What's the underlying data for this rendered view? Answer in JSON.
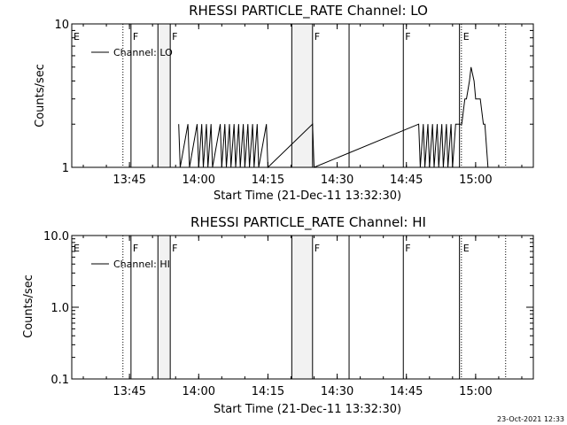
{
  "footer": {
    "timestamp": "23-Oct-2021 12:33"
  },
  "chart_data": [
    {
      "type": "line",
      "title": "RHESSI PARTICLE_RATE Channel: LO",
      "xlabel": "Start Time (21-Dec-11 13:32:30)",
      "ylabel": "Counts/sec",
      "yscale": "log",
      "ylim": [
        1,
        10
      ],
      "ytick_values": [
        1,
        10
      ],
      "ytick_labels": [
        "1",
        "10"
      ],
      "xlim": [
        "13:32:30",
        "15:12:30"
      ],
      "xticks": [
        "13:45",
        "14:00",
        "14:15",
        "14:30",
        "14:45",
        "15:00"
      ],
      "legend": {
        "entries": [
          "Channel: LO"
        ],
        "placement": "top-left"
      },
      "markers": [
        {
          "time": "13:32:30",
          "label": "E",
          "style": "solid"
        },
        {
          "time": "13:43:35",
          "label": "",
          "style": "dotted"
        },
        {
          "time": "13:45:20",
          "label": "F",
          "style": "solid"
        },
        {
          "time": "13:51:10",
          "label": "",
          "style": "solid"
        },
        {
          "time": "13:53:50",
          "label": "F",
          "style": "solid"
        },
        {
          "time": "14:20:10",
          "label": "",
          "style": "solid"
        },
        {
          "time": "14:24:40",
          "label": "F",
          "style": "solid"
        },
        {
          "time": "14:32:35",
          "label": "",
          "style": "solid"
        },
        {
          "time": "14:44:20",
          "label": "F",
          "style": "solid"
        },
        {
          "time": "14:56:30",
          "label": "",
          "style": "solid"
        },
        {
          "time": "14:56:55",
          "label": "E",
          "style": "dotted"
        },
        {
          "time": "15:06:30",
          "label": "",
          "style": "dotted"
        }
      ],
      "shaded": [
        [
          "13:51:10",
          "13:53:50"
        ],
        [
          "14:20:10",
          "14:24:40"
        ]
      ],
      "series": [
        {
          "name": "Channel: LO",
          "x": [
            "13:55:40",
            "13:56:00",
            "13:57:40",
            "13:58:00",
            "13:59:40",
            "14:00:00",
            "14:00:40",
            "14:01:00",
            "14:01:40",
            "14:02:00",
            "14:02:40",
            "14:03:00",
            "14:04:40",
            "14:05:00",
            "14:05:40",
            "14:06:00",
            "14:06:40",
            "14:07:00",
            "14:07:40",
            "14:08:00",
            "14:08:40",
            "14:09:00",
            "14:09:40",
            "14:10:00",
            "14:10:40",
            "14:11:00",
            "14:11:40",
            "14:12:00",
            "14:12:40",
            "14:13:00",
            "14:14:40",
            "14:15:00",
            "14:24:40",
            "14:25:00",
            "14:47:40",
            "14:48:00",
            "14:48:40",
            "14:49:00",
            "14:49:40",
            "14:50:00",
            "14:50:40",
            "14:51:00",
            "14:51:40",
            "14:52:00",
            "14:52:40",
            "14:53:00",
            "14:53:40",
            "14:54:00",
            "14:54:40",
            "14:55:00",
            "14:55:40",
            "14:56:00",
            "14:56:40",
            "14:57:00",
            "14:57:40",
            "14:58:00",
            "14:58:40",
            "14:59:00",
            "14:59:40",
            "15:00:00",
            "15:00:40",
            "15:01:00",
            "15:01:40",
            "15:02:00",
            "15:02:40",
            "15:03:00",
            "15:03:40",
            "15:04:00"
          ],
          "y": [
            2,
            1,
            2,
            1,
            2,
            1,
            2,
            1,
            2,
            1,
            2,
            1,
            2,
            1,
            2,
            1,
            2,
            1,
            2,
            1,
            2,
            1,
            2,
            1,
            2,
            1,
            2,
            1,
            2,
            1,
            2,
            1,
            2,
            1,
            2,
            1,
            2,
            1,
            2,
            1,
            2,
            1,
            2,
            1,
            2,
            1,
            2,
            1,
            2,
            1,
            2,
            2,
            2,
            2,
            3,
            3,
            4,
            5,
            4,
            3,
            3,
            3,
            2,
            2,
            1,
            1,
            1,
            1
          ]
        }
      ]
    },
    {
      "type": "line",
      "title": "RHESSI PARTICLE_RATE Channel: HI",
      "xlabel": "Start Time (21-Dec-11 13:32:30)",
      "ylabel": "Counts/sec",
      "yscale": "log",
      "ylim": [
        0.1,
        10
      ],
      "ytick_values": [
        0.1,
        1,
        10
      ],
      "ytick_labels": [
        "0.1",
        "1.0",
        "10.0"
      ],
      "xlim": [
        "13:32:30",
        "15:12:30"
      ],
      "xticks": [
        "13:45",
        "14:00",
        "14:15",
        "14:30",
        "14:45",
        "15:00"
      ],
      "legend": {
        "entries": [
          "Channel: HI"
        ],
        "placement": "top-left"
      },
      "markers": [
        {
          "time": "13:32:30",
          "label": "E",
          "style": "solid"
        },
        {
          "time": "13:43:35",
          "label": "",
          "style": "dotted"
        },
        {
          "time": "13:45:20",
          "label": "F",
          "style": "solid"
        },
        {
          "time": "13:51:10",
          "label": "",
          "style": "solid"
        },
        {
          "time": "13:53:50",
          "label": "F",
          "style": "solid"
        },
        {
          "time": "14:20:10",
          "label": "",
          "style": "solid"
        },
        {
          "time": "14:24:40",
          "label": "F",
          "style": "solid"
        },
        {
          "time": "14:32:35",
          "label": "",
          "style": "solid"
        },
        {
          "time": "14:44:20",
          "label": "F",
          "style": "solid"
        },
        {
          "time": "14:56:30",
          "label": "",
          "style": "solid"
        },
        {
          "time": "14:56:55",
          "label": "E",
          "style": "dotted"
        },
        {
          "time": "15:06:30",
          "label": "",
          "style": "dotted"
        }
      ],
      "shaded": [
        [
          "13:51:10",
          "13:53:50"
        ],
        [
          "14:20:10",
          "14:24:40"
        ]
      ],
      "series": [
        {
          "name": "Channel: HI",
          "x": [],
          "y": []
        }
      ]
    }
  ]
}
